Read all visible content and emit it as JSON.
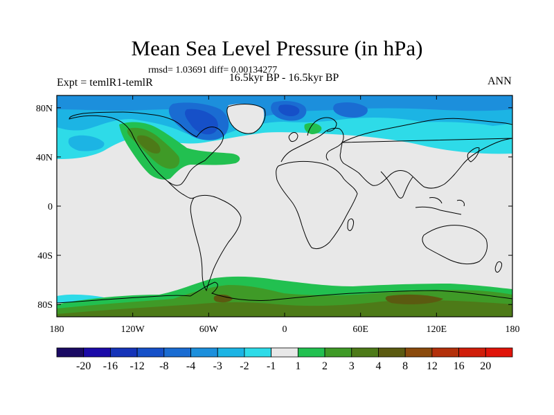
{
  "title": "Mean Sea Level Pressure (in hPa)",
  "subtitle_rmsd": "rmsd= 1.03691 diff= 0.00134277",
  "subtitle_center": "16.5kyr BP - 16.5kyr BP",
  "subtitle_left": "Expt = temlR1-temlR",
  "subtitle_right": "ANN",
  "map": {
    "projection": "cylindrical equidistant",
    "lon_range": [
      -180,
      180
    ],
    "lat_range": [
      -90,
      90
    ],
    "lon_ticks": [
      {
        "value": -180,
        "label": "180"
      },
      {
        "value": -120,
        "label": "120W"
      },
      {
        "value": -60,
        "label": "60W"
      },
      {
        "value": 0,
        "label": "0"
      },
      {
        "value": 60,
        "label": "60E"
      },
      {
        "value": 120,
        "label": "120E"
      },
      {
        "value": 180,
        "label": "180"
      }
    ],
    "lat_ticks": [
      {
        "value": 80,
        "label": "80N"
      },
      {
        "value": 40,
        "label": "40N"
      },
      {
        "value": 0,
        "label": "0"
      },
      {
        "value": -40,
        "label": "40S"
      },
      {
        "value": -80,
        "label": "80S"
      }
    ]
  },
  "colorbar": {
    "colors": [
      "#1a0a63",
      "#1b0aa8",
      "#1533b8",
      "#1650c8",
      "#1a6cd2",
      "#1c8fdc",
      "#1cb4e4",
      "#2edbe8",
      "#e8e8e8",
      "#22c050",
      "#3f9a27",
      "#4d7a18",
      "#5b5a10",
      "#8a4a0c",
      "#b3300a",
      "#d01e0a",
      "#e0140a"
    ],
    "labels": [
      "-20",
      "-16",
      "-12",
      "-8",
      "-4",
      "-3",
      "-2",
      "-1",
      "1",
      "2",
      "3",
      "4",
      "8",
      "12",
      "16",
      "20"
    ]
  },
  "field_colors": {
    "background": "#e8e8e8",
    "cyan": "#2edbe8",
    "lightblue": "#1cb4e4",
    "medblue": "#1c8fdc",
    "blue": "#1a6cd2",
    "darkblue": "#1650c8",
    "green": "#22c050",
    "darkgreen": "#3f9a27",
    "olive": "#4d7a18",
    "brown": "#5b5a10"
  }
}
